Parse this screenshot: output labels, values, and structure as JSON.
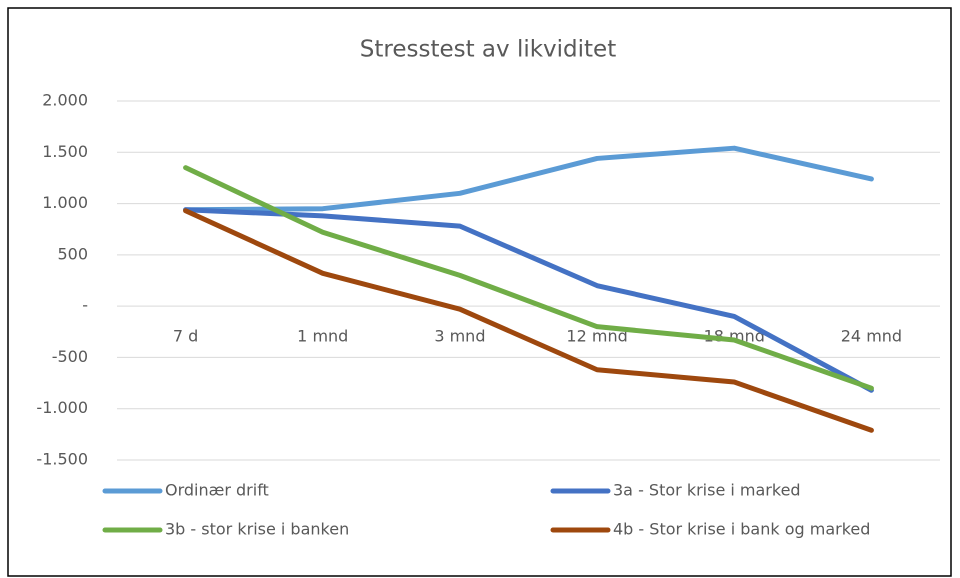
{
  "chart_data": {
    "type": "line",
    "title": "Stresstest av likviditet",
    "categories": [
      "7 d",
      "1 mnd",
      "3 mnd",
      "12 mnd",
      "18 mnd",
      "24 mnd"
    ],
    "series": [
      {
        "name": "Ordinær drift",
        "color": "#5b9bd5",
        "values": [
          940,
          950,
          1100,
          1440,
          1540,
          1240
        ]
      },
      {
        "name": "3a - Stor krise i marked",
        "color": "#4472c4",
        "values": [
          940,
          880,
          780,
          200,
          -100,
          -820
        ]
      },
      {
        "name": "3b - stor krise i banken",
        "color": "#70ad47",
        "values": [
          1350,
          720,
          300,
          -200,
          -330,
          -800
        ]
      },
      {
        "name": "4b - Stor krise i bank og marked",
        "color": "#9e480e",
        "values": [
          930,
          320,
          -30,
          -620,
          -740,
          -1210
        ]
      }
    ],
    "ylim": [
      -1500,
      2000
    ],
    "yticks": [
      {
        "value": 2000,
        "label": "2.000"
      },
      {
        "value": 1500,
        "label": "1.500"
      },
      {
        "value": 1000,
        "label": "1.000"
      },
      500,
      {
        "value": 0,
        "label": "-"
      },
      -500,
      {
        "value": -1000,
        "label": "-1.000"
      },
      {
        "value": -1500,
        "label": "-1.500"
      }
    ],
    "grid": true,
    "legend": "bottom"
  }
}
